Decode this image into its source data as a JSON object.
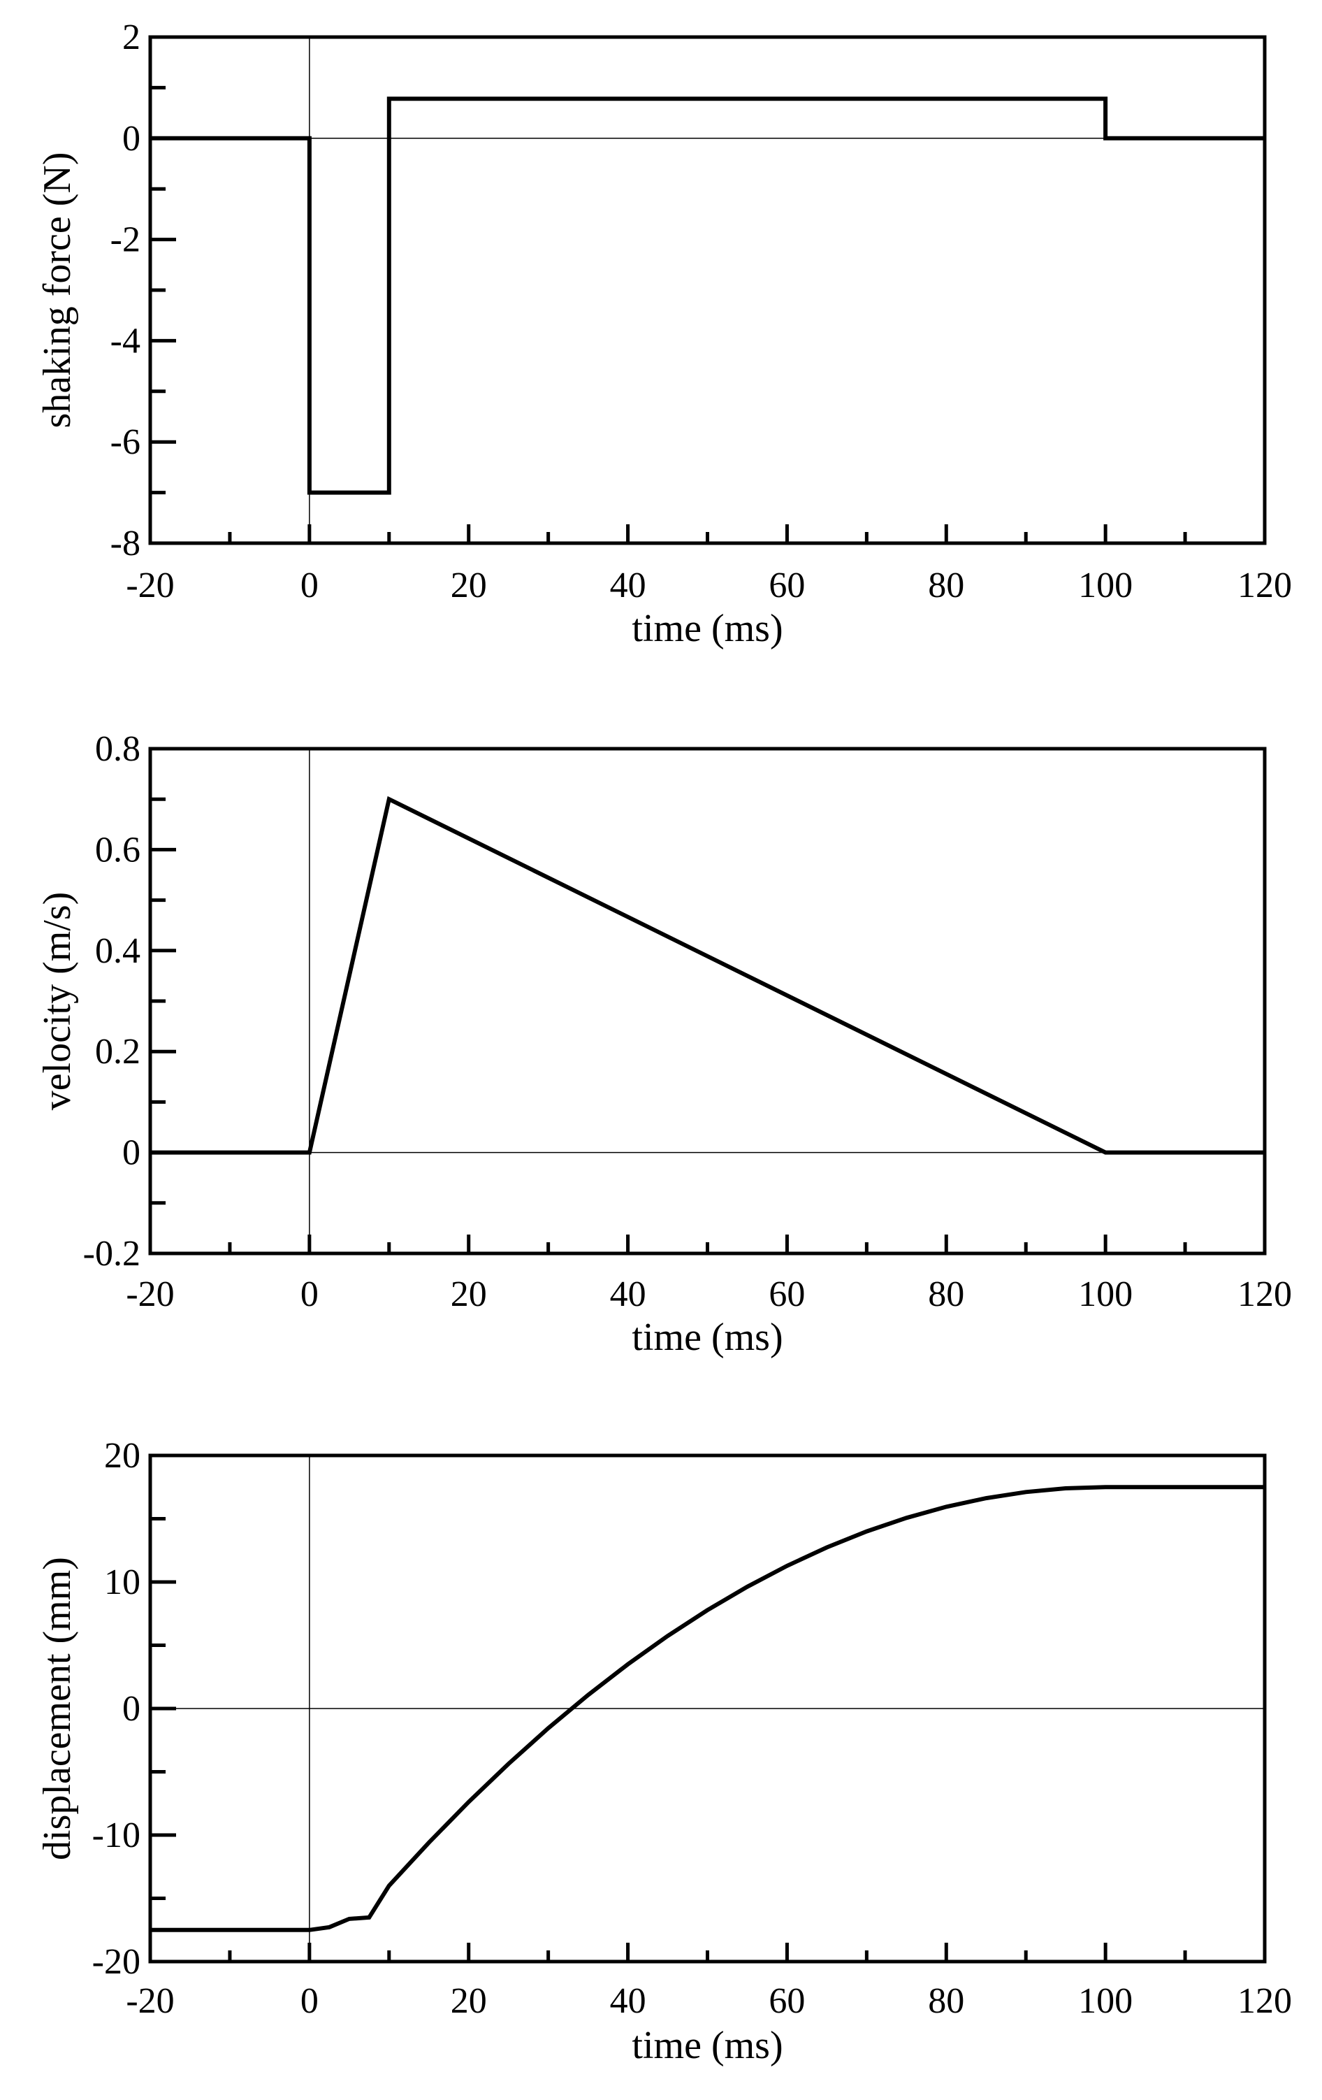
{
  "chart_data": [
    {
      "type": "line",
      "title": "",
      "xlabel": "time (ms)",
      "ylabel": "shaking force (N)",
      "xlim": [
        -20,
        120
      ],
      "ylim": [
        -8,
        2
      ],
      "xticks": [
        -20,
        0,
        20,
        40,
        60,
        80,
        100,
        120
      ],
      "yticks": [
        -8,
        -6,
        -4,
        -2,
        0,
        2
      ],
      "x_minor_step": 10,
      "y_minor_step": 1,
      "grid": false,
      "reference_lines": {
        "x": 0,
        "y": 0
      },
      "series": [
        {
          "name": "shaking force",
          "x": [
            -20,
            0,
            0,
            10,
            10,
            100,
            100,
            120
          ],
          "y": [
            0,
            0,
            -7,
            -7,
            0.78,
            0.78,
            0,
            0
          ]
        }
      ]
    },
    {
      "type": "line",
      "title": "",
      "xlabel": "time (ms)",
      "ylabel": "velocity (m/s)",
      "xlim": [
        -20,
        120
      ],
      "ylim": [
        -0.2,
        0.8
      ],
      "xticks": [
        -20,
        0,
        20,
        40,
        60,
        80,
        100,
        120
      ],
      "yticks": [
        -0.2,
        0,
        0.2,
        0.4,
        0.6,
        0.8
      ],
      "ytick_labels": [
        "-0.2",
        "0",
        "0.2",
        "0.4",
        "0.6",
        "0.8"
      ],
      "x_minor_step": 10,
      "y_minor_step": 0.1,
      "grid": false,
      "reference_lines": {
        "x": 0,
        "y": 0
      },
      "series": [
        {
          "name": "velocity",
          "x": [
            -20,
            0,
            10,
            100,
            120
          ],
          "y": [
            0,
            0,
            0.7,
            0,
            0
          ]
        }
      ]
    },
    {
      "type": "line",
      "title": "",
      "xlabel": "time (ms)",
      "ylabel": "displacement (mm)",
      "xlim": [
        -20,
        120
      ],
      "ylim": [
        -20,
        20
      ],
      "xticks": [
        -20,
        0,
        20,
        40,
        60,
        80,
        100,
        120
      ],
      "yticks": [
        -20,
        -10,
        0,
        10,
        20
      ],
      "x_minor_step": 10,
      "y_minor_step": 5,
      "grid": false,
      "reference_lines": {
        "x": 0,
        "y": 0
      },
      "series": [
        {
          "name": "displacement",
          "x": [
            -20,
            0,
            2.5,
            5,
            7.5,
            10,
            15,
            20,
            25,
            30,
            35,
            40,
            45,
            50,
            55,
            60,
            65,
            70,
            75,
            80,
            85,
            90,
            95,
            100,
            120
          ],
          "y": [
            -17.5,
            -17.5,
            -17.281,
            -16.625,
            -16.516,
            -14,
            -10.597,
            -7.389,
            -4.375,
            -1.556,
            1.069,
            3.5,
            5.736,
            7.778,
            9.625,
            11.278,
            12.736,
            14,
            15.069,
            15.944,
            16.625,
            17.111,
            17.403,
            17.5,
            17.5
          ]
        }
      ]
    }
  ]
}
